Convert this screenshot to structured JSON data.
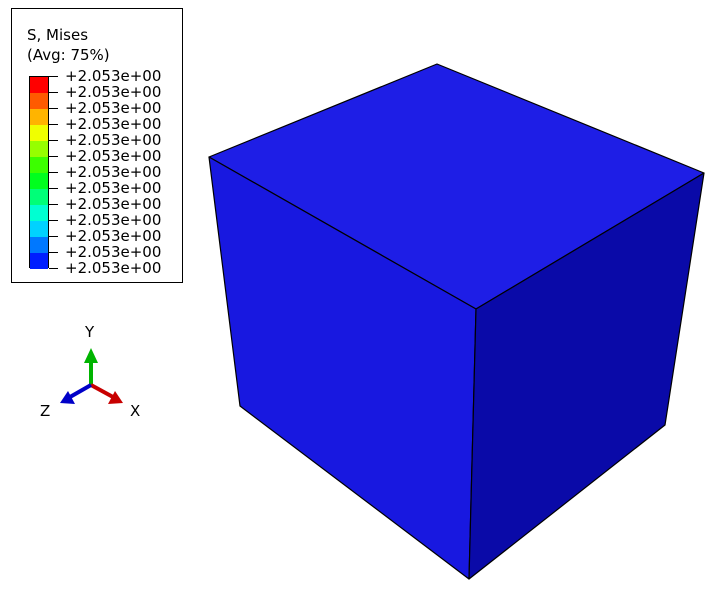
{
  "legend": {
    "title_line1": "S, Mises",
    "title_line2": "(Avg: 75%)",
    "entries": [
      {
        "value": "+2.053e+00",
        "color": "#ff0000"
      },
      {
        "value": "+2.053e+00",
        "color": "#ff5a00"
      },
      {
        "value": "+2.053e+00",
        "color": "#ffb400"
      },
      {
        "value": "+2.053e+00",
        "color": "#f0ff00"
      },
      {
        "value": "+2.053e+00",
        "color": "#96ff00"
      },
      {
        "value": "+2.053e+00",
        "color": "#3cff00"
      },
      {
        "value": "+2.053e+00",
        "color": "#00ff1e"
      },
      {
        "value": "+2.053e+00",
        "color": "#00ff78"
      },
      {
        "value": "+2.053e+00",
        "color": "#00ffd2"
      },
      {
        "value": "+2.053e+00",
        "color": "#00d2ff"
      },
      {
        "value": "+2.053e+00",
        "color": "#0078ff"
      },
      {
        "value": "+2.053e+00",
        "color": "#001eff"
      },
      {
        "value": "+2.053e+00",
        "color": null
      }
    ]
  },
  "triad": {
    "y_label": "Y",
    "x_label": "X",
    "z_label": "Z",
    "colors": {
      "x": "#c80000",
      "y": "#00b400",
      "z": "#0000c8"
    }
  },
  "model": {
    "colors": {
      "top_face": "#1e1ee6",
      "front_face": "#1818e0",
      "side_face": "#0a0aa8",
      "edge": "#000000"
    }
  }
}
